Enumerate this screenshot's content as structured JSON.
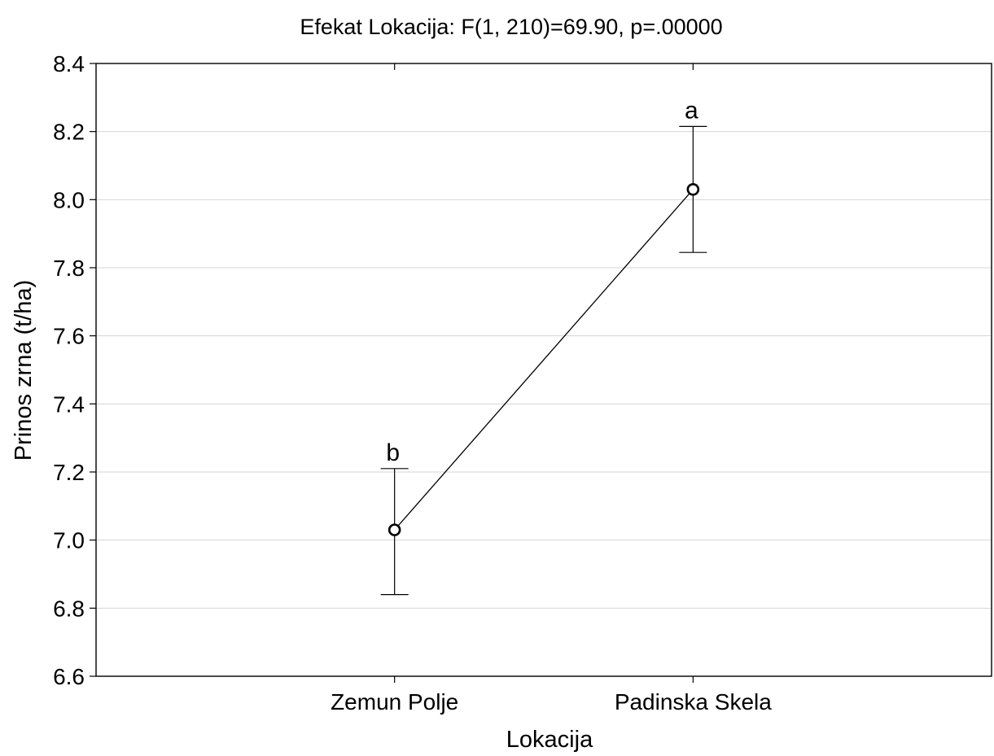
{
  "chart_data": {
    "type": "line",
    "title": "Efekat Lokacija: F(1, 210)=69.90, p=.00000",
    "xlabel": "Lokacija",
    "ylabel": "Prinos zrna (t/ha)",
    "categories": [
      "Zemun Polje",
      "Padinska Skela"
    ],
    "values": [
      7.03,
      8.03
    ],
    "error_lower": [
      6.84,
      7.845
    ],
    "error_upper": [
      7.21,
      8.215
    ],
    "point_labels": [
      "b",
      "a"
    ],
    "ylim": [
      6.6,
      8.4
    ],
    "yticks": [
      "6.6",
      "6.8",
      "7.0",
      "7.2",
      "7.4",
      "7.6",
      "7.8",
      "8.0",
      "8.2",
      "8.4"
    ],
    "grid": true,
    "legend": "none"
  }
}
